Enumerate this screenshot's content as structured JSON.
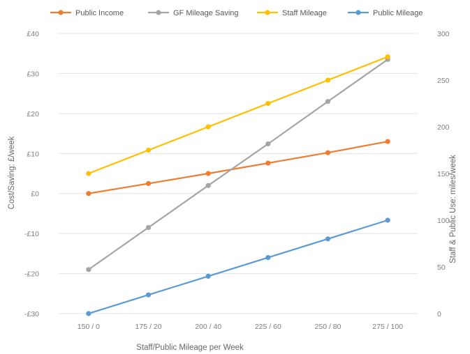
{
  "chart_data": {
    "type": "line",
    "categories": [
      "150 / 0",
      "175 / 20",
      "200 / 40",
      "225 / 60",
      "250 / 80",
      "275 / 100"
    ],
    "xlabel": "Staff/Public Mileage per Week",
    "ylabel_left": "Cost/Saving: £/week",
    "ylabel_right": "Staff & Public Use: miles/week",
    "left_axis": {
      "ylim": [
        -30,
        40
      ],
      "ticks": [
        "-£30",
        "-£20",
        "-£10",
        "£0",
        "£10",
        "£20",
        "£30",
        "£40"
      ],
      "tick_values": [
        -30,
        -20,
        -10,
        0,
        10,
        20,
        30,
        40
      ]
    },
    "right_axis": {
      "ylim": [
        0,
        300
      ],
      "ticks": [
        "0",
        "50",
        "100",
        "150",
        "200",
        "250",
        "300"
      ],
      "tick_values": [
        0,
        50,
        100,
        150,
        200,
        250,
        300
      ]
    },
    "grid": true,
    "legend_position": "top",
    "series": [
      {
        "name": "Public Income",
        "axis": "left",
        "color": "#ed7d31",
        "values": [
          0,
          2.5,
          5,
          7.6,
          10.2,
          13
        ]
      },
      {
        "name": "GF Mileage Saving",
        "axis": "left",
        "color": "#a5a5a5",
        "values": [
          -19,
          -8.5,
          2,
          12.4,
          23,
          33.5
        ]
      },
      {
        "name": "Staff Mileage",
        "axis": "right",
        "color": "#ffc000",
        "values": [
          150,
          175,
          200,
          225,
          250,
          275
        ]
      },
      {
        "name": "Public Mileage",
        "axis": "right",
        "color": "#5b9bd5",
        "values": [
          0,
          20,
          40,
          60,
          80,
          100
        ]
      }
    ]
  }
}
